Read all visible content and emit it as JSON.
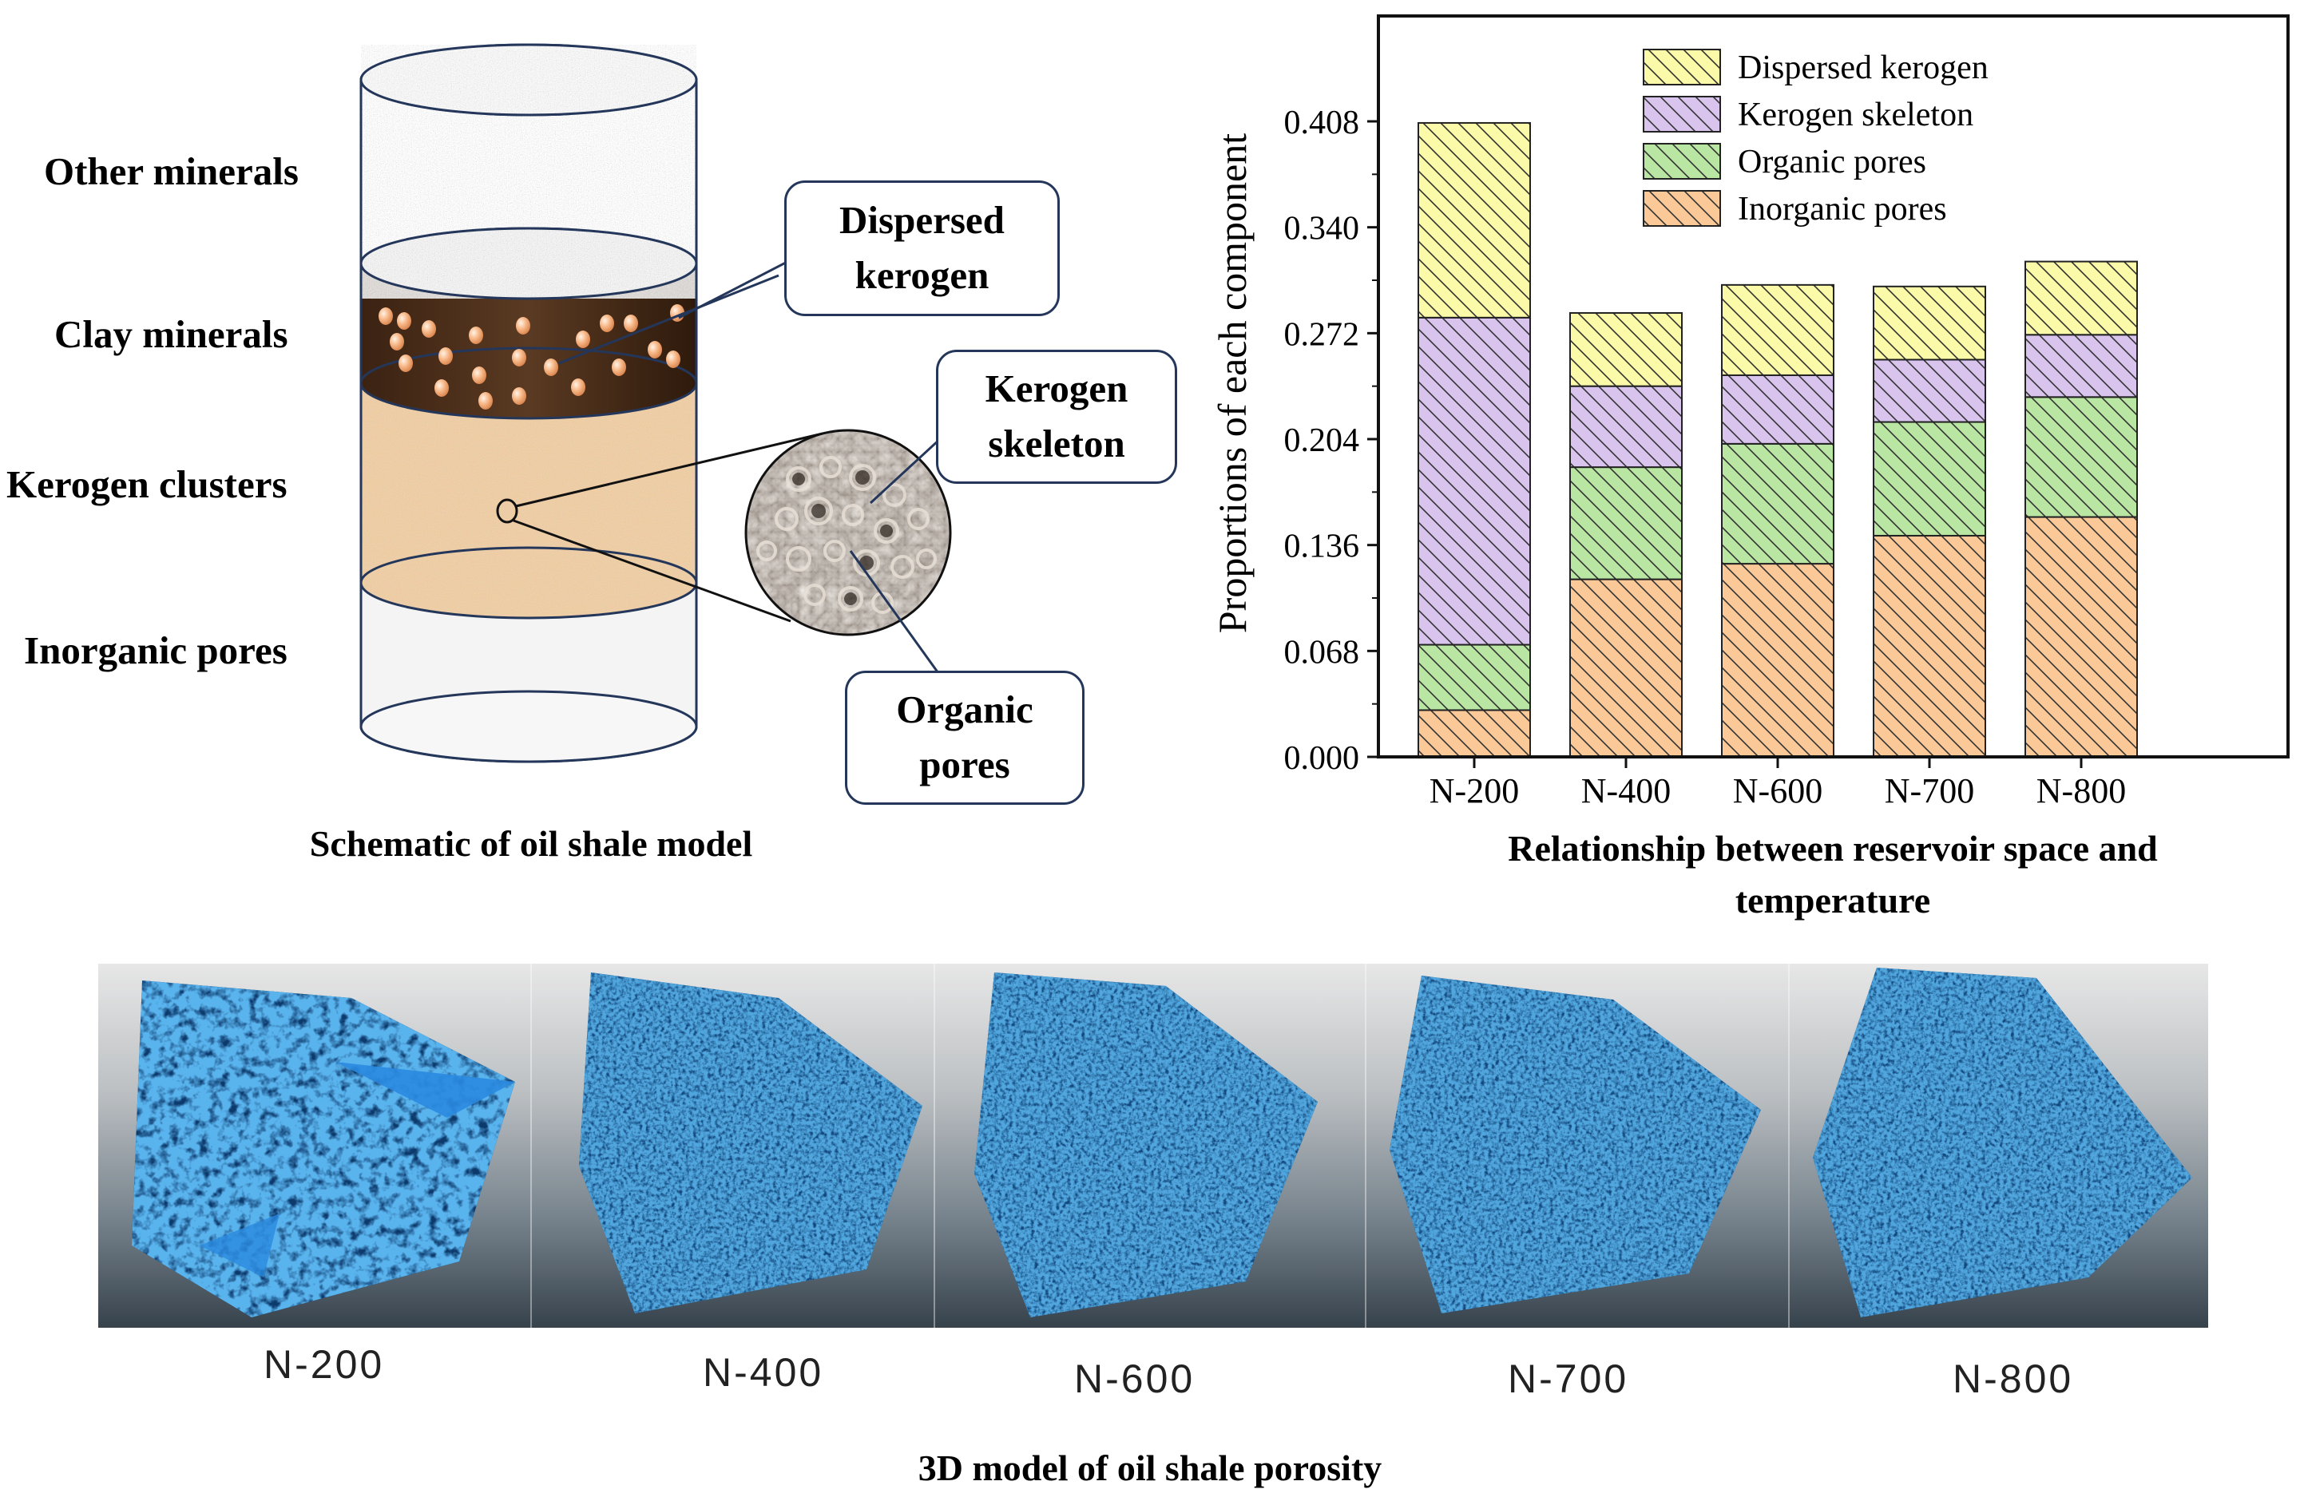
{
  "schematic": {
    "layers": {
      "other_minerals": "Other minerals",
      "clay_minerals": "Clay minerals",
      "kerogen_clusters": "Kerogen clusters",
      "inorganic_pores": "Inorganic pores"
    },
    "callouts": {
      "dispersed_kerogen": "Dispersed kerogen",
      "kerogen_skeleton": "Kerogen skeleton",
      "organic_pores": "Organic pores"
    },
    "caption": "Schematic of oil shale model",
    "colors": {
      "other": "#c9c9c9",
      "clay": "#4a2c18",
      "cluster": "#d9a06a",
      "pores": "#f2f2f2",
      "outline": "#24375a"
    }
  },
  "chart_data": {
    "type": "bar",
    "stacked": true,
    "categories": [
      "N-200",
      "N-400",
      "N-600",
      "N-700",
      "N-800"
    ],
    "series": [
      {
        "name": "Inorganic pores",
        "color": "#fbc898",
        "values": [
          0.03,
          0.114,
          0.124,
          0.142,
          0.154
        ]
      },
      {
        "name": "Organic pores",
        "color": "#b9e6a3",
        "values": [
          0.042,
          0.072,
          0.077,
          0.073,
          0.077
        ]
      },
      {
        "name": "Kerogen skeleton",
        "color": "#d9c4ee",
        "values": [
          0.21,
          0.052,
          0.044,
          0.04,
          0.04
        ]
      },
      {
        "name": "Dispersed kerogen",
        "color": "#fafaa8",
        "values": [
          0.125,
          0.047,
          0.058,
          0.047,
          0.047
        ]
      }
    ],
    "yticks": [
      "0.000",
      "0.068",
      "0.136",
      "0.204",
      "0.272",
      "0.340",
      "0.408"
    ],
    "ylim": [
      0,
      0.408
    ],
    "ylabel": "Proportions of each component",
    "xlabel": "Relationship between reservoir space and temperature",
    "legend_position": "top-center"
  },
  "models": {
    "labels": [
      "N-200",
      "N-400",
      "N-600",
      "N-700",
      "N-800"
    ],
    "caption": "3D model of oil shale porosity",
    "color": "#2f86c8"
  }
}
